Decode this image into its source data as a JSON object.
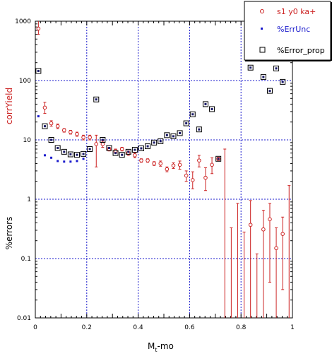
{
  "chart_data": {
    "type": "scatter",
    "title": "",
    "xlabel": "M",
    "xlabel_sub": "t",
    "xlabel_suffix": "-mo",
    "ylabel_top": "corrYield",
    "ylabel_bottom": "%errors",
    "xlim": [
      0,
      1
    ],
    "ylim": [
      0.01,
      1000
    ],
    "yscale": "log",
    "grid": true,
    "legend_position": "top-right",
    "x_ticks": [
      "0",
      "0.2",
      "0.4",
      "0.6",
      "0.8",
      "1"
    ],
    "y_ticks": [
      "0.01",
      "0.1",
      "1",
      "10",
      "100",
      "1000"
    ],
    "colors": {
      "corrYield": "#cc2222",
      "ErrUnc": "#1a1acc",
      "Error_prop": "#000000",
      "grid": "#1a1acc",
      "bg": "#ffffff"
    },
    "series": [
      {
        "name": "s1 y0 ka+",
        "marker": "open-circle",
        "color": "#cc2222",
        "points": [
          {
            "x": 0.012,
            "y": 750,
            "lo": 600,
            "hi": 1000
          },
          {
            "x": 0.037,
            "y": 35,
            "lo": 28,
            "hi": 43
          },
          {
            "x": 0.062,
            "y": 19,
            "lo": 17,
            "hi": 21
          },
          {
            "x": 0.087,
            "y": 17,
            "lo": 15.5,
            "hi": 18.5
          },
          {
            "x": 0.112,
            "y": 14.5,
            "lo": 13.5,
            "hi": 15.5
          },
          {
            "x": 0.137,
            "y": 13.5,
            "lo": 12.5,
            "hi": 14.5
          },
          {
            "x": 0.162,
            "y": 12.5,
            "lo": 11.5,
            "hi": 13.5
          },
          {
            "x": 0.187,
            "y": 11,
            "lo": 10,
            "hi": 12
          },
          {
            "x": 0.212,
            "y": 11,
            "lo": 10,
            "hi": 12
          },
          {
            "x": 0.237,
            "y": 8.5,
            "lo": 3.5,
            "hi": 12
          },
          {
            "x": 0.262,
            "y": 8.5,
            "lo": 7.5,
            "hi": 9.5
          },
          {
            "x": 0.287,
            "y": 7,
            "lo": 6.5,
            "hi": 7.5
          },
          {
            "x": 0.312,
            "y": 6.5,
            "lo": 6,
            "hi": 7
          },
          {
            "x": 0.337,
            "y": 7,
            "lo": 6.5,
            "hi": 7.5
          },
          {
            "x": 0.362,
            "y": 6,
            "lo": 5.5,
            "hi": 6.5
          },
          {
            "x": 0.387,
            "y": 5.5,
            "lo": 5,
            "hi": 6
          },
          {
            "x": 0.412,
            "y": 4.5,
            "lo": 4.2,
            "hi": 4.8
          },
          {
            "x": 0.437,
            "y": 4.5,
            "lo": 4.2,
            "hi": 4.8
          },
          {
            "x": 0.462,
            "y": 4,
            "lo": 3.7,
            "hi": 4.3
          },
          {
            "x": 0.487,
            "y": 4,
            "lo": 3.6,
            "hi": 4.4
          },
          {
            "x": 0.512,
            "y": 3.2,
            "lo": 2.9,
            "hi": 3.5
          },
          {
            "x": 0.537,
            "y": 3.7,
            "lo": 3.3,
            "hi": 4.1
          },
          {
            "x": 0.562,
            "y": 3.8,
            "lo": 3.2,
            "hi": 4.4
          },
          {
            "x": 0.587,
            "y": 2.5,
            "lo": 2,
            "hi": 3
          },
          {
            "x": 0.612,
            "y": 2.1,
            "lo": 1.5,
            "hi": 2.9
          },
          {
            "x": 0.637,
            "y": 4.5,
            "lo": 3.5,
            "hi": 5.5
          },
          {
            "x": 0.662,
            "y": 2.3,
            "lo": 1.4,
            "hi": 3.4
          },
          {
            "x": 0.687,
            "y": 3.8,
            "lo": 2.7,
            "hi": 5
          },
          {
            "x": 0.712,
            "y": 4.8,
            "lo": 4.5,
            "hi": 5.1
          },
          {
            "x": 0.737,
            "y": null,
            "lo": 0.01,
            "hi": 7
          },
          {
            "x": 0.762,
            "y": null,
            "lo": 0.01,
            "hi": 0.33
          },
          {
            "x": 0.787,
            "y": null,
            "lo": 0.01,
            "hi": 0.85
          },
          {
            "x": 0.812,
            "y": null,
            "lo": 0.01,
            "hi": 0.28
          },
          {
            "x": 0.837,
            "y": 0.37,
            "lo": 0.01,
            "hi": 0.95
          },
          {
            "x": 0.862,
            "y": null,
            "lo": 0.01,
            "hi": 0.12
          },
          {
            "x": 0.887,
            "y": 0.31,
            "lo": 0.01,
            "hi": 0.65
          },
          {
            "x": 0.912,
            "y": 0.46,
            "lo": 0.04,
            "hi": 0.85
          },
          {
            "x": 0.937,
            "y": 0.15,
            "lo": 0.01,
            "hi": 0.33
          },
          {
            "x": 0.962,
            "y": 0.26,
            "lo": 0.03,
            "hi": 0.5
          },
          {
            "x": 0.987,
            "y": null,
            "lo": 0.01,
            "hi": 1.7
          }
        ]
      },
      {
        "name": "%ErrUnc",
        "marker": "small-square",
        "color": "#1a1acc",
        "points": [
          {
            "x": 0.012,
            "y": 25
          },
          {
            "x": 0.037,
            "y": 5.5
          },
          {
            "x": 0.062,
            "y": 5
          },
          {
            "x": 0.087,
            "y": 4.4
          },
          {
            "x": 0.112,
            "y": 4.3
          },
          {
            "x": 0.137,
            "y": 4.3
          },
          {
            "x": 0.162,
            "y": 4.4
          },
          {
            "x": 0.187,
            "y": 4.8
          }
        ]
      },
      {
        "name": "%Error_prop",
        "marker": "open-square",
        "color": "#000000",
        "points": [
          {
            "x": 0.012,
            "y": 145
          },
          {
            "x": 0.037,
            "y": 17
          },
          {
            "x": 0.062,
            "y": 10
          },
          {
            "x": 0.087,
            "y": 7.3
          },
          {
            "x": 0.112,
            "y": 6.3
          },
          {
            "x": 0.137,
            "y": 5.7
          },
          {
            "x": 0.162,
            "y": 5.6
          },
          {
            "x": 0.187,
            "y": 5.8
          },
          {
            "x": 0.212,
            "y": 7
          },
          {
            "x": 0.237,
            "y": 48
          },
          {
            "x": 0.262,
            "y": 10
          },
          {
            "x": 0.287,
            "y": 7.3
          },
          {
            "x": 0.312,
            "y": 6
          },
          {
            "x": 0.337,
            "y": 5.6
          },
          {
            "x": 0.362,
            "y": 6.3
          },
          {
            "x": 0.387,
            "y": 6.8
          },
          {
            "x": 0.412,
            "y": 7.2
          },
          {
            "x": 0.437,
            "y": 7.8
          },
          {
            "x": 0.462,
            "y": 9
          },
          {
            "x": 0.487,
            "y": 9.5
          },
          {
            "x": 0.512,
            "y": 12
          },
          {
            "x": 0.537,
            "y": 11.5
          },
          {
            "x": 0.562,
            "y": 13
          },
          {
            "x": 0.587,
            "y": 19
          },
          {
            "x": 0.612,
            "y": 27
          },
          {
            "x": 0.637,
            "y": 15
          },
          {
            "x": 0.662,
            "y": 40
          },
          {
            "x": 0.687,
            "y": 33
          },
          {
            "x": 0.712,
            "y": 4.8
          },
          {
            "x": 0.837,
            "y": 165
          },
          {
            "x": 0.887,
            "y": 115
          },
          {
            "x": 0.912,
            "y": 67
          },
          {
            "x": 0.937,
            "y": 160
          },
          {
            "x": 0.962,
            "y": 95
          }
        ]
      }
    ]
  }
}
